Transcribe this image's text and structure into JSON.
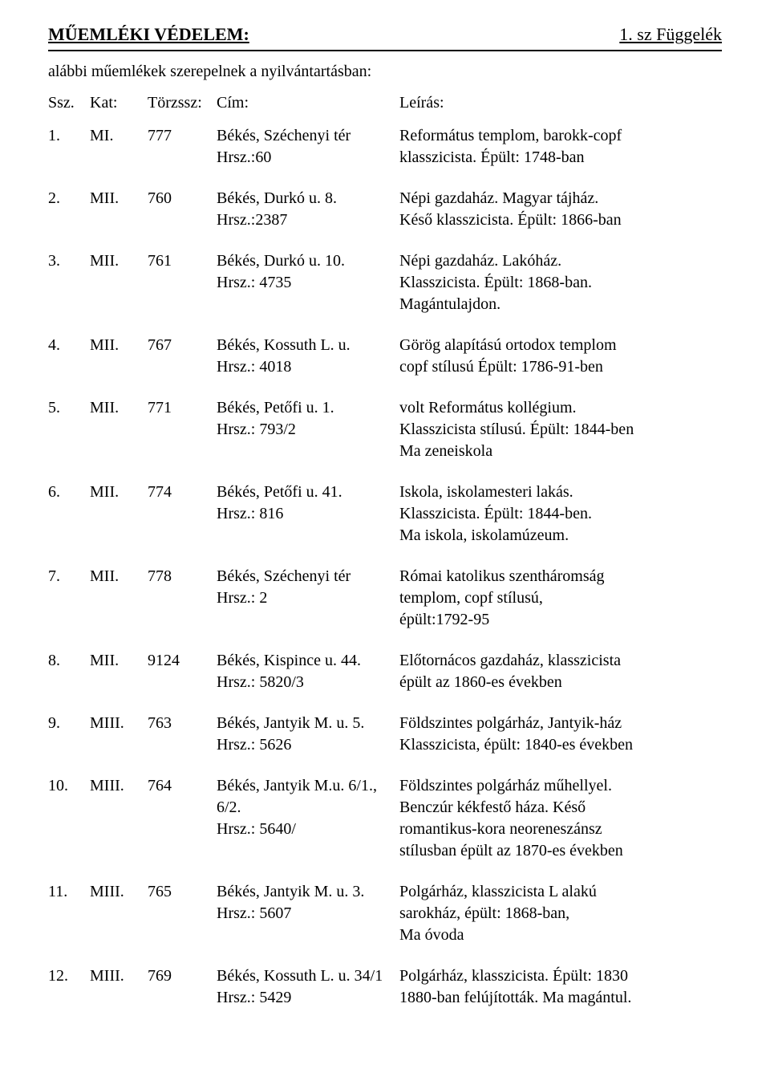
{
  "header": {
    "title": "MŰEMLÉKI VÉDELEM:",
    "appendix": "1. sz Függelék"
  },
  "intro": "alábbi műemlékek szerepelnek a nyilvántartásban:",
  "columns": {
    "ssz": "Ssz.",
    "kat": "Kat:",
    "torzs": "Törzssz:",
    "cim": "Cím:",
    "leiras": "Leírás:"
  },
  "entries": [
    {
      "ssz": "1.",
      "kat": "MI.",
      "torzs": "777",
      "cim_line1": "Békés, Széchenyi tér",
      "cim_line2": "Hrsz.:60",
      "desc_line1": "Református templom, barokk-copf",
      "desc_line2": "klasszicista. Épült: 1748-ban",
      "desc_line3": ""
    },
    {
      "ssz": "2.",
      "kat": "MII.",
      "torzs": "760",
      "cim_line1": "Békés, Durkó u. 8.",
      "cim_line2": "Hrsz.:2387",
      "desc_line1": "Népi gazdaház. Magyar tájház.",
      "desc_line2": "Késő klasszicista. Épült: 1866-ban",
      "desc_line3": ""
    },
    {
      "ssz": "3.",
      "kat": "MII.",
      "torzs": "761",
      "cim_line1": "Békés, Durkó u. 10.",
      "cim_line2": "Hrsz.: 4735",
      "desc_line1": "Népi gazdaház. Lakóház.",
      "desc_line2": "Klasszicista. Épült: 1868-ban.",
      "desc_line3": "Magántulajdon."
    },
    {
      "ssz": "4.",
      "kat": "MII.",
      "torzs": "767",
      "cim_line1": "Békés, Kossuth L. u.",
      "cim_line2": "Hrsz.: 4018",
      "desc_line1": "Görög alapítású ortodox templom",
      "desc_line2": "copf stílusú Épült: 1786-91-ben",
      "desc_line3": ""
    },
    {
      "ssz": "5.",
      "kat": "MII.",
      "torzs": "771",
      "cim_line1": "Békés, Petőfi u. 1.",
      "cim_line2": "Hrsz.: 793/2",
      "desc_line1": "volt Református kollégium.",
      "desc_line2": "Klasszicista stílusú. Épült: 1844-ben",
      "desc_line3": "Ma zeneiskola"
    },
    {
      "ssz": "6.",
      "kat": "MII.",
      "torzs": "774",
      "cim_line1": "Békés, Petőfi u. 41.",
      "cim_line2": "Hrsz.: 816",
      "desc_line1": "Iskola, iskolamesteri lakás.",
      "desc_line2": "Klasszicista. Épült: 1844-ben.",
      "desc_line3": "Ma iskola, iskolamúzeum."
    },
    {
      "ssz": "7.",
      "kat": "MII.",
      "torzs": "778",
      "cim_line1": "Békés, Széchenyi tér",
      "cim_line2": "Hrsz.: 2",
      "desc_line1": "Római katolikus szentháromság",
      "desc_line2": "templom, copf stílusú,",
      "desc_line3": "épült:1792-95"
    },
    {
      "ssz": "8.",
      "kat": "MII.",
      "torzs": "9124",
      "cim_line1": "Békés, Kispince u. 44.",
      "cim_line2": "Hrsz.: 5820/3",
      "desc_line1": "Előtornácos gazdaház, klasszicista",
      "desc_line2": "épült az 1860-es években",
      "desc_line3": ""
    },
    {
      "ssz": "9.",
      "kat": "MIII.",
      "torzs": "763",
      "cim_line1": "Békés, Jantyik M. u. 5.",
      "cim_line2": "Hrsz.: 5626",
      "desc_line1": "Földszintes polgárház, Jantyik-ház",
      "desc_line2": "Klasszicista, épült: 1840-es években",
      "desc_line3": ""
    },
    {
      "ssz": "10.",
      "kat": "MIII.",
      "torzs": "764",
      "cim_line1": "Békés, Jantyik M.u. 6/1., 6/2.",
      "cim_line2": "Hrsz.: 5640/",
      "desc_line1": "Földszintes polgárház műhellyel.",
      "desc_line2": "Benczúr kékfestő háza. Késő",
      "desc_line3": "romantikus-kora neoreneszánsz",
      "desc_line4": "stílusban épült az 1870-es években"
    },
    {
      "ssz": "11.",
      "kat": "MIII.",
      "torzs": "765",
      "cim_line1": "Békés, Jantyik M. u. 3.",
      "cim_line2": "Hrsz.: 5607",
      "desc_line1": "Polgárház, klasszicista L alakú",
      "desc_line2": "sarokház, épült: 1868-ban,",
      "desc_line3": "Ma óvoda"
    },
    {
      "ssz": "12.",
      "kat": "MIII.",
      "torzs": "769",
      "cim_line1": "Békés, Kossuth L. u. 34/1",
      "cim_line2": "Hrsz.: 5429",
      "desc_line1": "Polgárház, klasszicista. Épült: 1830",
      "desc_line2": "1880-ban felújították. Ma magántul.",
      "desc_line3": ""
    }
  ]
}
